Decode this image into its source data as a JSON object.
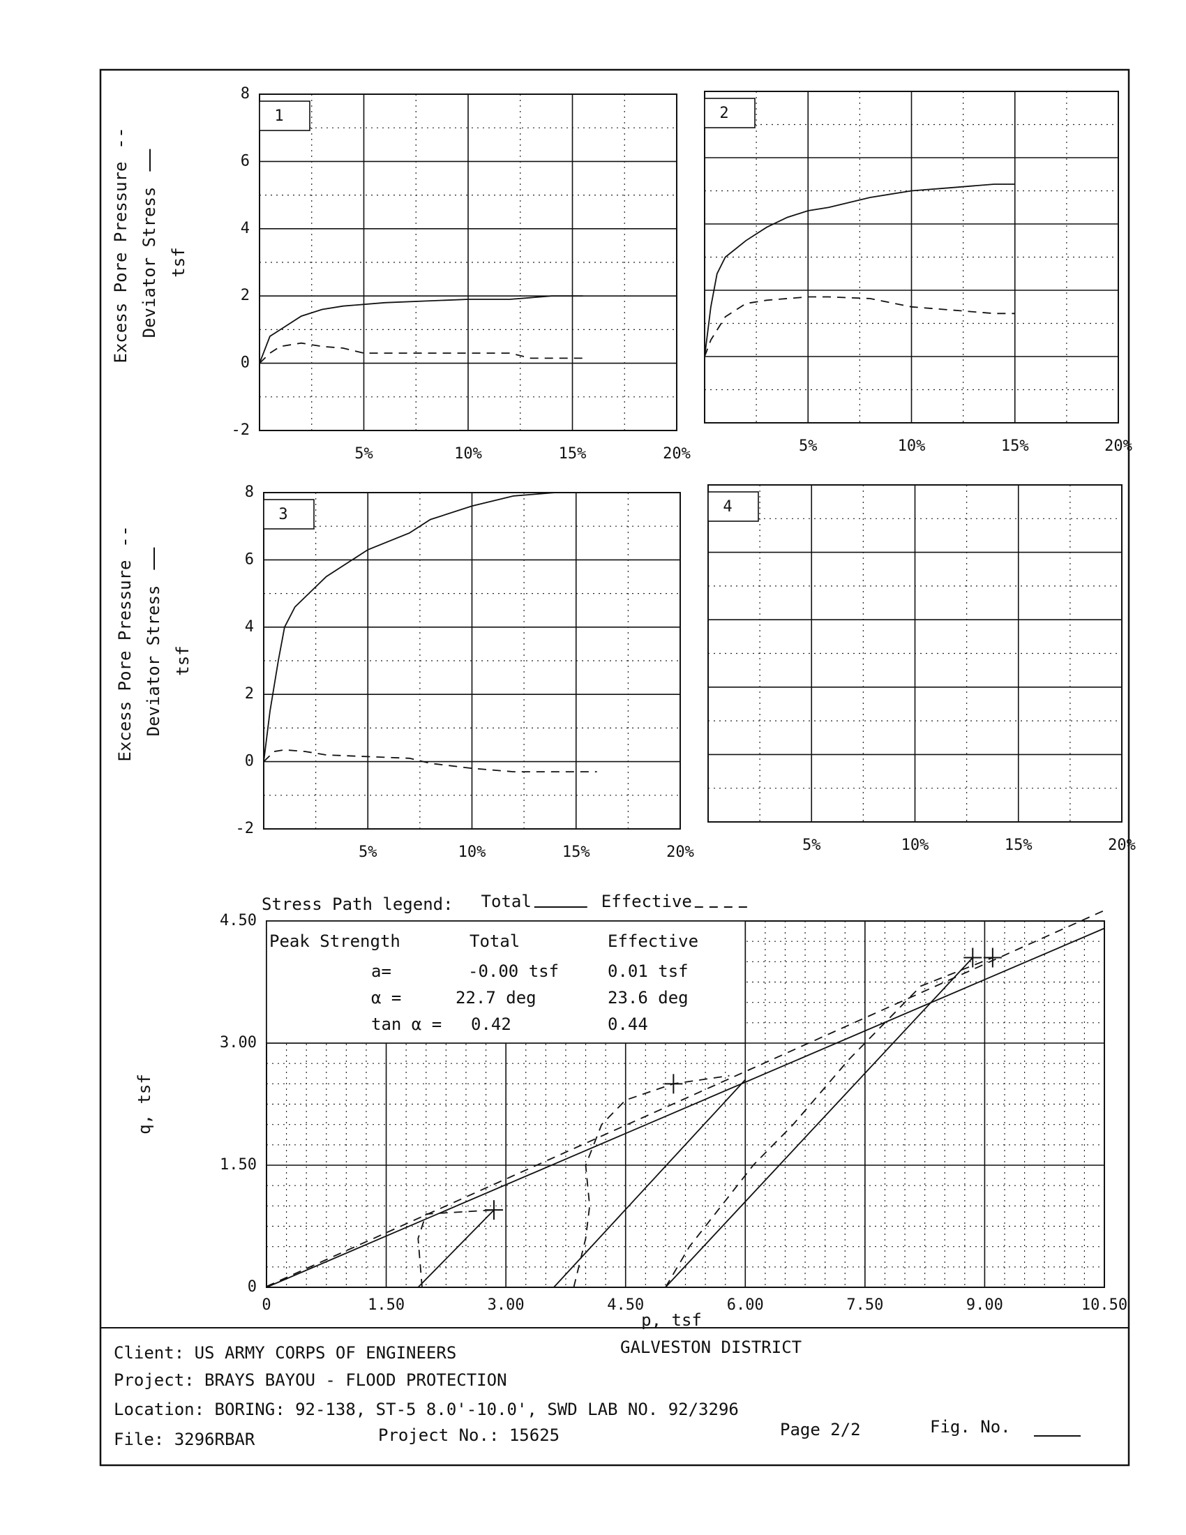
{
  "chart_data": [
    {
      "type": "line",
      "panel_label": "1",
      "ylabel": [
        "Excess Pore Pressure",
        "Deviator Stress",
        "tsf"
      ],
      "xlim": [
        0,
        20
      ],
      "ylim": [
        -2,
        8
      ],
      "xticks": [
        {
          "value": 5,
          "label": "5%"
        },
        {
          "value": 10,
          "label": "10%"
        },
        {
          "value": 15,
          "label": "15%"
        },
        {
          "value": 20,
          "label": "20%"
        }
      ],
      "xminorticks": [
        2.5,
        7.5,
        12.5,
        17.5
      ],
      "yticks": [
        -2,
        0,
        2,
        4,
        6,
        8
      ],
      "yminorticks": [
        -1,
        1,
        3,
        5,
        7
      ],
      "ytick_labels": true,
      "grid": true,
      "series": [
        {
          "style": "solid",
          "x": [
            0,
            0.5,
            1,
            2,
            3,
            4,
            6,
            8,
            10,
            12,
            14,
            15.5
          ],
          "values": [
            0,
            0.8,
            1.0,
            1.4,
            1.6,
            1.7,
            1.8,
            1.85,
            1.9,
            1.9,
            2.0,
            2.0
          ]
        },
        {
          "style": "dashed",
          "x": [
            0,
            0.5,
            1,
            2,
            3,
            4,
            5,
            8,
            12,
            13,
            15.5
          ],
          "values": [
            0,
            0.3,
            0.5,
            0.6,
            0.5,
            0.45,
            0.3,
            0.3,
            0.3,
            0.15,
            0.15
          ]
        }
      ]
    },
    {
      "type": "line",
      "panel_label": "2",
      "xlim": [
        0,
        20
      ],
      "ylim": [
        -2,
        8
      ],
      "xticks": [
        {
          "value": 5,
          "label": "5%"
        },
        {
          "value": 10,
          "label": "10%"
        },
        {
          "value": 15,
          "label": "15%"
        },
        {
          "value": 20,
          "label": "20%"
        }
      ],
      "xminorticks": [
        2.5,
        7.5,
        12.5,
        17.5
      ],
      "yticks": [
        -2,
        0,
        2,
        4,
        6,
        8
      ],
      "yminorticks": [
        -1,
        1,
        3,
        5,
        7
      ],
      "ytick_labels": false,
      "grid": true,
      "series": [
        {
          "style": "solid",
          "x": [
            0,
            0.3,
            0.6,
            1,
            2,
            3,
            4,
            5,
            6,
            8,
            10,
            12,
            14,
            15
          ],
          "values": [
            0,
            1.5,
            2.5,
            3.0,
            3.5,
            3.9,
            4.2,
            4.4,
            4.5,
            4.8,
            5.0,
            5.1,
            5.2,
            5.2
          ]
        },
        {
          "style": "dashed",
          "x": [
            0,
            0.3,
            1,
            2,
            3,
            5,
            6,
            8,
            10,
            12,
            14,
            15
          ],
          "values": [
            0,
            0.5,
            1.2,
            1.6,
            1.7,
            1.8,
            1.8,
            1.75,
            1.5,
            1.4,
            1.3,
            1.3
          ]
        }
      ]
    },
    {
      "type": "line",
      "panel_label": "3",
      "ylabel": [
        "Excess Pore Pressure",
        "Deviator Stress",
        "tsf"
      ],
      "xlim": [
        0,
        20
      ],
      "ylim": [
        -2,
        8
      ],
      "xticks": [
        {
          "value": 5,
          "label": "5%"
        },
        {
          "value": 10,
          "label": "10%"
        },
        {
          "value": 15,
          "label": "15%"
        },
        {
          "value": 20,
          "label": "20%"
        }
      ],
      "xminorticks": [
        2.5,
        7.5,
        12.5,
        17.5
      ],
      "yticks": [
        -2,
        0,
        2,
        4,
        6,
        8
      ],
      "yminorticks": [
        -1,
        1,
        3,
        5,
        7
      ],
      "ytick_labels": true,
      "grid": true,
      "series": [
        {
          "style": "solid",
          "x": [
            0,
            0.3,
            0.7,
            1,
            1.5,
            3,
            5,
            7,
            8,
            10,
            12,
            14,
            15
          ],
          "values": [
            0,
            1.5,
            3.0,
            4.0,
            4.6,
            5.5,
            6.3,
            6.8,
            7.2,
            7.6,
            7.9,
            8.0,
            8.0
          ]
        },
        {
          "style": "dashed",
          "x": [
            0,
            0.5,
            1,
            2,
            3,
            5,
            7,
            8,
            10,
            12,
            14,
            16
          ],
          "values": [
            0,
            0.3,
            0.35,
            0.3,
            0.2,
            0.15,
            0.1,
            -0.05,
            -0.2,
            -0.3,
            -0.3,
            -0.3
          ]
        }
      ]
    },
    {
      "type": "line",
      "panel_label": "4",
      "xlim": [
        0,
        20
      ],
      "ylim": [
        -2,
        8
      ],
      "xticks": [
        {
          "value": 5,
          "label": "5%"
        },
        {
          "value": 10,
          "label": "10%"
        },
        {
          "value": 15,
          "label": "15%"
        },
        {
          "value": 20,
          "label": "20%"
        }
      ],
      "xminorticks": [
        2.5,
        7.5,
        12.5,
        17.5
      ],
      "yticks": [
        -2,
        0,
        2,
        4,
        6,
        8
      ],
      "yminorticks": [
        -1,
        1,
        3,
        5,
        7
      ],
      "ytick_labels": false,
      "grid": true,
      "series": []
    },
    {
      "type": "line",
      "legend_title": "Stress Path legend:",
      "legend": [
        {
          "name": "Total",
          "style": "solid"
        },
        {
          "name": "Effective",
          "style": "dashed"
        }
      ],
      "xlabel": "p,  tsf",
      "ylabel": [
        "q,  tsf"
      ],
      "xlim": [
        0,
        10.5
      ],
      "ylim": [
        0,
        4.5
      ],
      "xticks": [
        0,
        {
          "value": 1.5,
          "label": "1.50"
        },
        {
          "value": 3,
          "label": "3.00"
        },
        {
          "value": 4.5,
          "label": "4.50"
        },
        {
          "value": 6,
          "label": "6.00"
        },
        {
          "value": 7.5,
          "label": "7.50"
        },
        {
          "value": 9,
          "label": "9.00"
        },
        {
          "value": 10.5,
          "label": "10.50"
        }
      ],
      "xminorticks": [
        0.25,
        0.5,
        0.75,
        1,
        1.25,
        1.75,
        2,
        2.25,
        2.5,
        2.75,
        3.25,
        3.5,
        3.75,
        4,
        4.25,
        4.75,
        5,
        5.25,
        5.5,
        5.75,
        6.25,
        6.5,
        6.75,
        7,
        7.25,
        7.75,
        8,
        8.25,
        8.5,
        8.75,
        9.25,
        9.5,
        9.75,
        10,
        10.25
      ],
      "yticks": [
        0,
        {
          "value": 1.5,
          "label": "1.50"
        },
        {
          "value": 3,
          "label": "3.00"
        },
        {
          "value": 4.5,
          "label": "4.50"
        }
      ],
      "yminorticks": [
        0.25,
        0.5,
        0.75,
        1,
        1.25,
        1.75,
        2,
        2.25,
        2.5,
        2.75,
        3.25,
        3.5,
        3.75,
        4,
        4.25
      ],
      "ytick_labels": true,
      "grid": true,
      "strength_table": {
        "header": [
          "Peak Strength",
          "Total",
          "Effective"
        ],
        "rows": [
          [
            "a=",
            "-0.00 tsf",
            "0.01 tsf"
          ],
          [
            "α =",
            "22.7 deg",
            "23.6 deg"
          ],
          [
            "tan α =",
            "0.42",
            "0.44"
          ]
        ]
      },
      "series": [
        {
          "style": "solid",
          "x": [
            0,
            10.5
          ],
          "values": [
            0,
            4.41
          ]
        },
        {
          "style": "dashed",
          "x": [
            0,
            10.5
          ],
          "values": [
            0.01,
            4.63
          ]
        },
        {
          "style": "solid",
          "x": [
            1.9,
            2.85
          ],
          "values": [
            0,
            0.95
          ]
        },
        {
          "style": "solid",
          "x": [
            3.6,
            6.0
          ],
          "values": [
            0,
            2.55
          ]
        },
        {
          "style": "solid",
          "x": [
            5.0,
            8.85
          ],
          "values": [
            0,
            4.05
          ]
        },
        {
          "style": "dashed",
          "x": [
            1.95,
            1.9,
            2.0,
            2.85
          ],
          "values": [
            0,
            0.6,
            0.9,
            0.95
          ]
        },
        {
          "style": "dashed",
          "x": [
            3.85,
            4.0,
            4.05,
            4.0,
            4.2,
            4.5,
            5.1,
            5.8
          ],
          "values": [
            0,
            0.6,
            1.0,
            1.5,
            2.0,
            2.3,
            2.5,
            2.6
          ]
        },
        {
          "style": "dashed",
          "x": [
            5.0,
            5.3,
            5.7,
            6.1,
            6.6,
            7.3,
            8.2,
            9.1
          ],
          "values": [
            0,
            0.5,
            1.0,
            1.5,
            2.0,
            2.8,
            3.7,
            4.05
          ]
        },
        {
          "style": "marker",
          "x": [
            2.85,
            5.1,
            8.85,
            9.1
          ],
          "values": [
            0.95,
            2.5,
            4.05,
            4.05
          ]
        }
      ]
    }
  ],
  "footer": {
    "client": "Client:  US ARMY CORPS OF ENGINEERS",
    "district": "GALVESTON DISTRICT",
    "project": "Project:  BRAYS BAYOU - FLOOD PROTECTION",
    "location": "Location:  BORING:  92-138,  ST-5 8.0'-10.0',  SWD LAB NO. 92/3296",
    "file": "File:  3296RBAR",
    "project_no": "Project No.:  15625",
    "page": "Page 2/2",
    "fig_no": "Fig. No."
  }
}
